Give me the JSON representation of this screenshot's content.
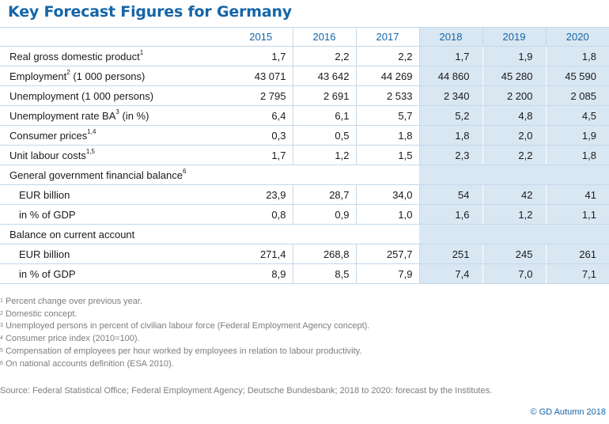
{
  "title": "Key Forecast Figures for Germany",
  "chart_data": {
    "type": "table",
    "title": "Key Forecast Figures for Germany",
    "years": [
      "2015",
      "2016",
      "2017",
      "2018",
      "2019",
      "2020"
    ],
    "forecast_years": [
      "2018",
      "2019",
      "2020"
    ],
    "rows": [
      {
        "label": "Real gross domestic product",
        "sup": "1",
        "values": [
          "1,7",
          "2,2",
          "2,2",
          "1,7",
          "1,9",
          "1,8"
        ]
      },
      {
        "label": "Employment",
        "sup": "2",
        "label_suffix": " (1 000 persons)",
        "values": [
          "43 071",
          "43 642",
          "44 269",
          "44 860",
          "45 280",
          "45 590"
        ]
      },
      {
        "label": "Unemployment (1 000 persons)",
        "values": [
          "2 795",
          "2 691",
          "2 533",
          "2 340",
          "2 200",
          "2 085"
        ]
      },
      {
        "label": "Unemployment rate BA",
        "sup": "3",
        "label_suffix": " (in %)",
        "values": [
          "6,4",
          "6,1",
          "5,7",
          "5,2",
          "4,8",
          "4,5"
        ]
      },
      {
        "label": "Consumer prices",
        "sup": "1,4",
        "values": [
          "0,3",
          "0,5",
          "1,8",
          "1,8",
          "2,0",
          "1,9"
        ]
      },
      {
        "label": "Unit labour costs",
        "sup": "1,5",
        "values": [
          "1,7",
          "1,2",
          "1,5",
          "2,3",
          "2,2",
          "1,8"
        ]
      },
      {
        "label": "General government financial balance",
        "sup": "6",
        "group": true
      },
      {
        "label": "EUR billion",
        "sub": true,
        "values": [
          "23,9",
          "28,7",
          "34,0",
          "54",
          "42",
          "41"
        ]
      },
      {
        "label": "in % of GDP",
        "sub": true,
        "values": [
          "0,8",
          "0,9",
          "1,0",
          "1,6",
          "1,2",
          "1,1"
        ]
      },
      {
        "label": "Balance on current account",
        "group": true
      },
      {
        "label": "EUR billion",
        "sub": true,
        "values": [
          "271,4",
          "268,8",
          "257,7",
          "251",
          "245",
          "261"
        ]
      },
      {
        "label": "in % of GDP",
        "sub": true,
        "values": [
          "8,9",
          "8,5",
          "7,9",
          "7,4",
          "7,0",
          "7,1"
        ]
      }
    ]
  },
  "footnotes": [
    {
      "num": "1",
      "text": " Percent change over previous year."
    },
    {
      "num": "2",
      "text": " Domestic concept."
    },
    {
      "num": "3",
      "text": " Unemployed persons in percent of civilian labour force (Federal Employment Agency concept)."
    },
    {
      "num": "4",
      "text": " Consumer price index (2010=100)."
    },
    {
      "num": "5",
      "text": " Compensation of employees per hour worked by employees in relation to labour productivity."
    },
    {
      "num": "6",
      "text": " On national accounts definition (ESA 2010)."
    }
  ],
  "source": "Source: Federal Statistical Office; Federal Employment Agency; Deutsche Bundesbank; 2018 to 2020: forecast by the Institutes.",
  "copyright": "© GD Autumn 2018",
  "colors": {
    "title": "#1565a8",
    "forecast_bg": "#d9e7f3",
    "grid": "#c4d8ea",
    "notes": "#7d7d7d"
  }
}
